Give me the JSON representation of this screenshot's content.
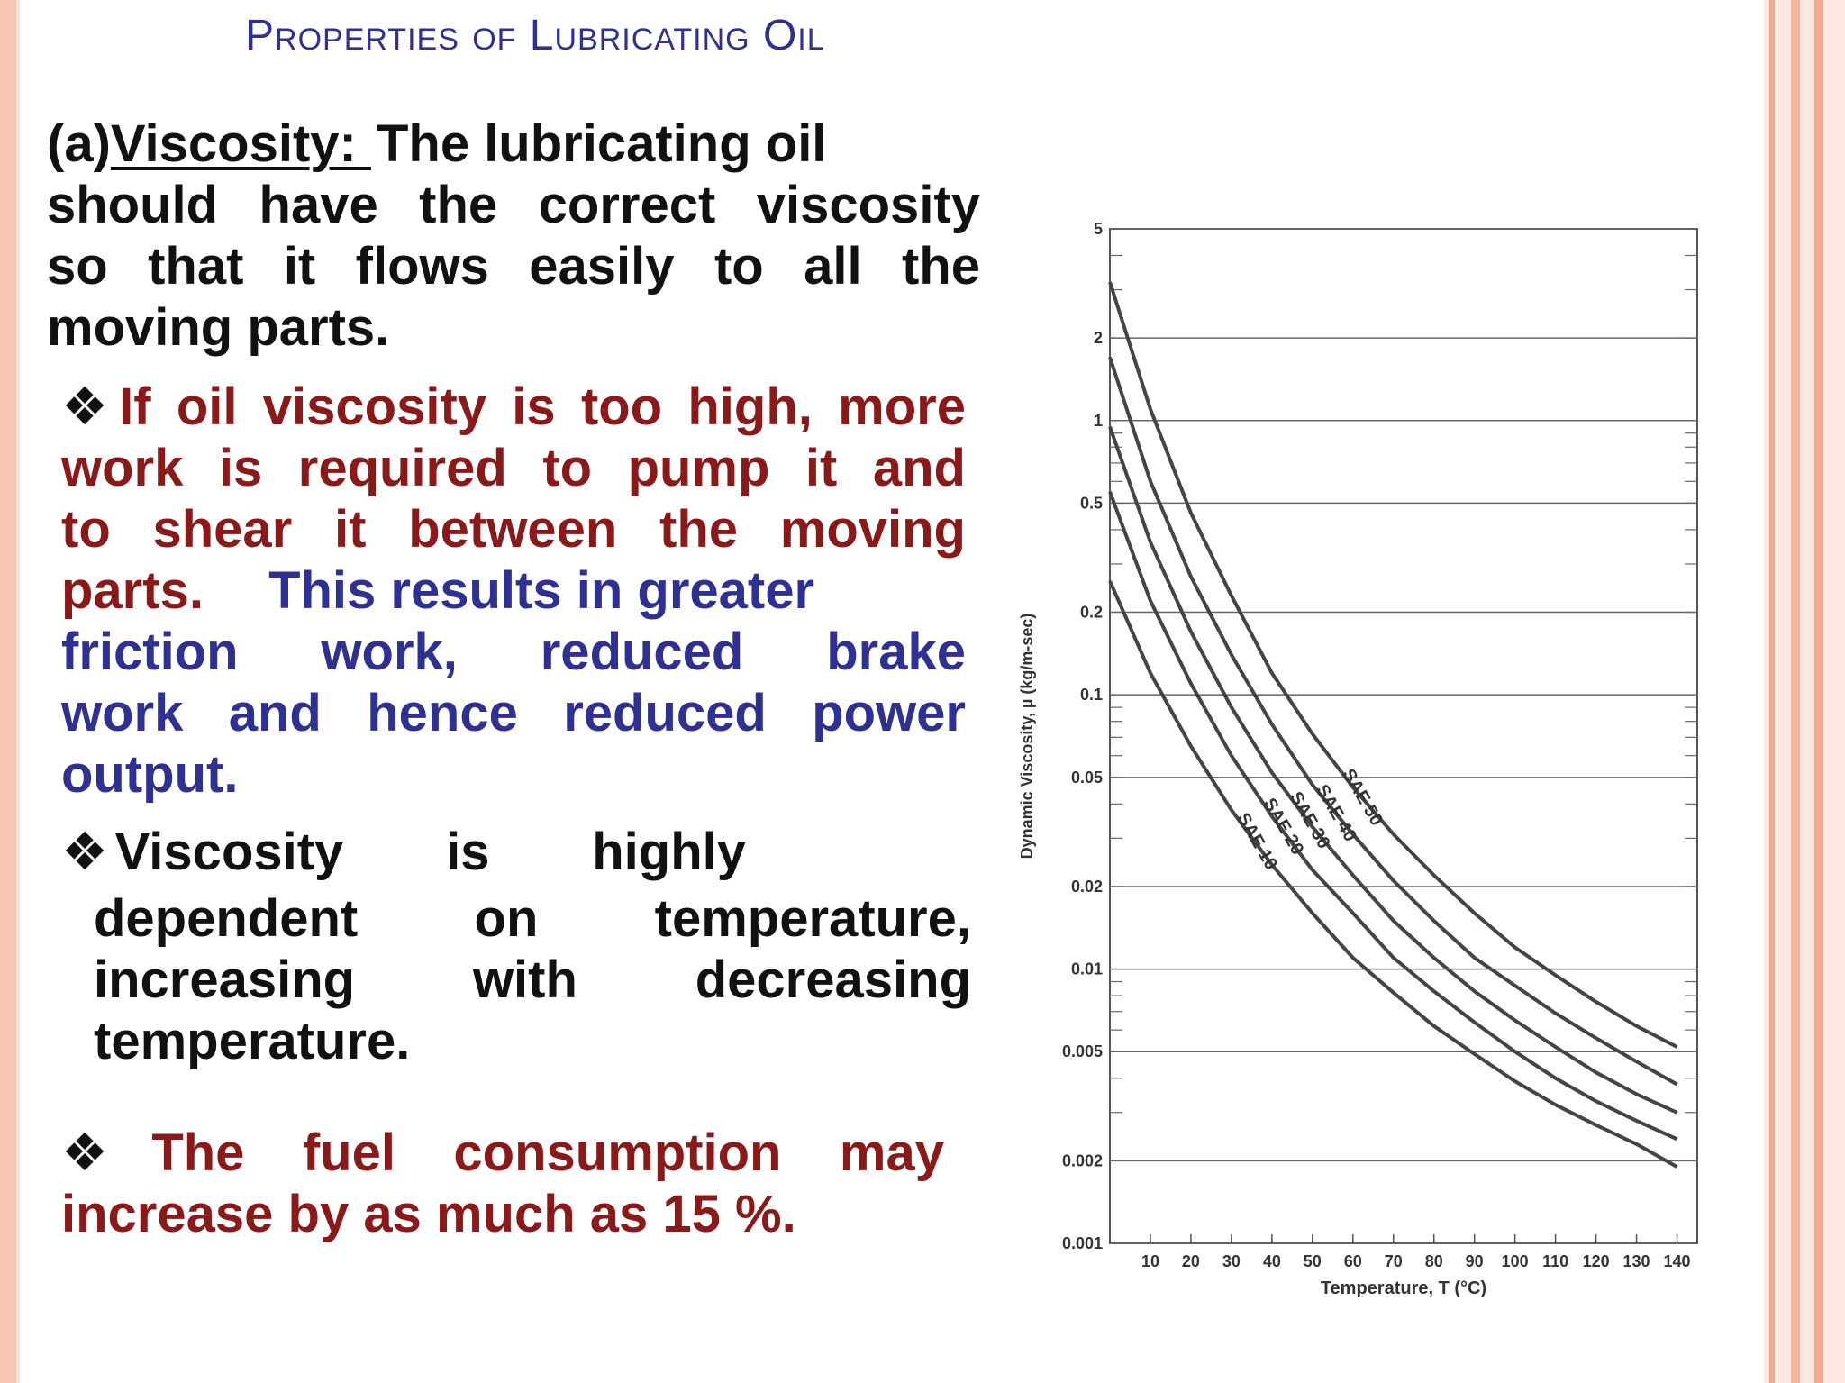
{
  "slide": {
    "title": "Properties of Lubricating Oil"
  },
  "viscosity": {
    "label_prefix": "(a)",
    "label": "Viscosity: ",
    "lines": [
      "The lubricating oil",
      "should have the correct viscosity",
      "so that it flows easily to all the",
      "moving parts."
    ]
  },
  "bullets": {
    "high": {
      "red_lines": [
        "If oil viscosity is too high, more",
        "work is required to pump it and",
        "to shear it between the moving",
        "parts."
      ],
      "blue_lines": [
        "This results in greater",
        "friction work, reduced brake",
        "work and hence reduced power",
        "output."
      ]
    },
    "temperature": {
      "lines": [
        "Viscosity is highly",
        "dependent on temperature,",
        "increasing with decreasing",
        "temperature."
      ]
    },
    "fuel": {
      "lines": [
        "The fuel consumption may",
        "increase by as much as 15 %."
      ]
    }
  },
  "chart_data": {
    "type": "line",
    "title": "",
    "xlabel": "Temperature, T (°C)",
    "ylabel": "Dynamic Viscosity, µ (kg/m-sec)",
    "y_scale": "log",
    "xlim": [
      0,
      145
    ],
    "ylim": [
      0.001,
      5
    ],
    "x_ticks": [
      10,
      20,
      30,
      40,
      50,
      60,
      70,
      80,
      90,
      100,
      110,
      120,
      130,
      140
    ],
    "y_ticks": [
      0.001,
      0.002,
      0.005,
      0.01,
      0.02,
      0.05,
      0.1,
      0.2,
      0.5,
      1,
      2,
      5
    ],
    "y_tick_labels": [
      "0.001",
      "0.002",
      "0.005",
      "0.01",
      "0.02",
      "0.05",
      "0.1",
      "0.2",
      "0.5",
      "1",
      "2",
      "5"
    ],
    "grid": true,
    "series": [
      {
        "name": "SAE 10",
        "x": [
          0,
          10,
          20,
          30,
          40,
          50,
          60,
          70,
          80,
          90,
          100,
          110,
          120,
          130,
          140
        ],
        "values": [
          0.26,
          0.12,
          0.065,
          0.038,
          0.024,
          0.016,
          0.011,
          0.0082,
          0.0062,
          0.0049,
          0.0039,
          0.0032,
          0.0027,
          0.0023,
          0.0019
        ]
      },
      {
        "name": "SAE 20",
        "x": [
          0,
          10,
          20,
          30,
          40,
          50,
          60,
          70,
          80,
          90,
          100,
          110,
          120,
          130,
          140
        ],
        "values": [
          0.55,
          0.22,
          0.11,
          0.06,
          0.036,
          0.023,
          0.016,
          0.011,
          0.0083,
          0.0064,
          0.005,
          0.004,
          0.0033,
          0.0028,
          0.0024
        ]
      },
      {
        "name": "SAE 30",
        "x": [
          0,
          10,
          20,
          30,
          40,
          50,
          60,
          70,
          80,
          90,
          100,
          110,
          120,
          130,
          140
        ],
        "values": [
          0.95,
          0.36,
          0.17,
          0.09,
          0.052,
          0.033,
          0.022,
          0.015,
          0.011,
          0.0083,
          0.0065,
          0.0052,
          0.0042,
          0.0035,
          0.003
        ]
      },
      {
        "name": "SAE 40",
        "x": [
          0,
          10,
          20,
          30,
          40,
          50,
          60,
          70,
          80,
          90,
          100,
          110,
          120,
          130,
          140
        ],
        "values": [
          1.7,
          0.6,
          0.27,
          0.14,
          0.078,
          0.047,
          0.031,
          0.021,
          0.015,
          0.011,
          0.0087,
          0.0069,
          0.0056,
          0.0046,
          0.0038
        ]
      },
      {
        "name": "SAE 50",
        "x": [
          0,
          10,
          20,
          30,
          40,
          50,
          60,
          70,
          80,
          90,
          100,
          110,
          120,
          130,
          140
        ],
        "values": [
          3.2,
          1.1,
          0.46,
          0.23,
          0.12,
          0.072,
          0.046,
          0.031,
          0.022,
          0.016,
          0.012,
          0.0095,
          0.0076,
          0.0062,
          0.0052
        ]
      }
    ]
  }
}
